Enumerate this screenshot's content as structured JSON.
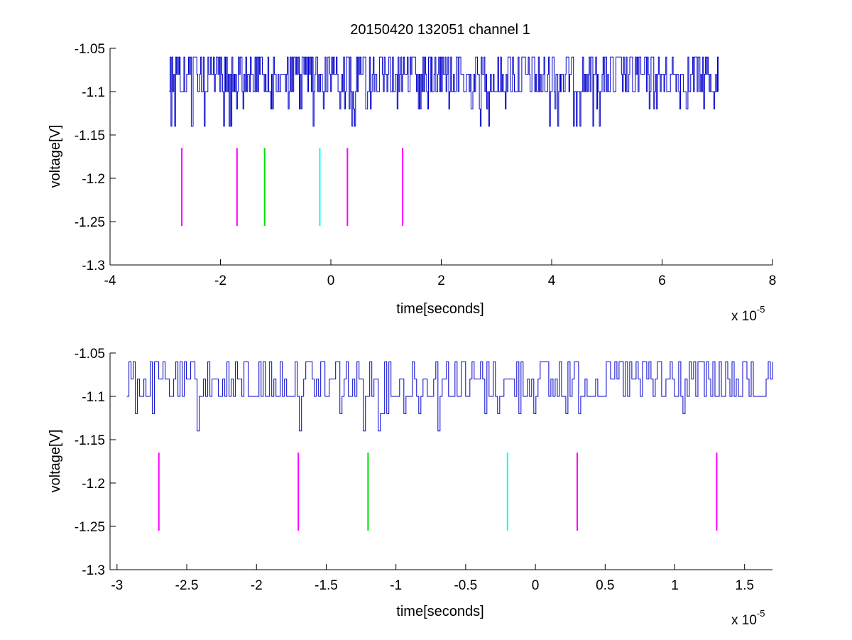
{
  "chart_data": [
    {
      "type": "line",
      "title": "20150420 132051 channel 1",
      "xlabel": "time[seconds]",
      "ylabel": "voltage[V]",
      "x_multiplier_text": "x 10",
      "x_multiplier_exponent": "-5",
      "xlim": [
        -4,
        8
      ],
      "ylim": [
        -1.3,
        -1.05
      ],
      "xticks": [
        -4,
        -2,
        0,
        2,
        4,
        6,
        8
      ],
      "xtick_labels": [
        "-4",
        "-2",
        "0",
        "2",
        "4",
        "6",
        "8"
      ],
      "yticks": [
        -1.05,
        -1.1,
        -1.15,
        -1.2,
        -1.25,
        -1.3
      ],
      "ytick_labels": [
        "-1.05",
        "-1.1",
        "-1.15",
        "-1.2",
        "-1.25",
        "-1.3"
      ],
      "grid": false,
      "signal": {
        "color": "#0000cc",
        "x_start": -2.93,
        "x_end": 7.02,
        "levels": [
          -1.06,
          -1.08,
          -1.1,
          -1.12,
          -1.14
        ]
      },
      "markers": [
        {
          "x": -2.7,
          "y_bottom": -1.255,
          "y_top": -1.165,
          "color": "#ff00ff"
        },
        {
          "x": -1.7,
          "y_bottom": -1.255,
          "y_top": -1.165,
          "color": "#ff00ff"
        },
        {
          "x": -1.2,
          "y_bottom": -1.255,
          "y_top": -1.165,
          "color": "#00e000"
        },
        {
          "x": -0.2,
          "y_bottom": -1.255,
          "y_top": -1.165,
          "color": "#00ffff"
        },
        {
          "x": 0.3,
          "y_bottom": -1.255,
          "y_top": -1.165,
          "color": "#ff00ff"
        },
        {
          "x": 1.3,
          "y_bottom": -1.255,
          "y_top": -1.165,
          "color": "#ff00ff"
        }
      ]
    },
    {
      "type": "line",
      "title": "",
      "xlabel": "time[seconds]",
      "ylabel": "voltage[V]",
      "x_multiplier_text": "x 10",
      "x_multiplier_exponent": "-5",
      "xlim": [
        -3.05,
        1.7
      ],
      "ylim": [
        -1.3,
        -1.05
      ],
      "xticks": [
        -3,
        -2.5,
        -2,
        -1.5,
        -1,
        -0.5,
        0,
        0.5,
        1,
        1.5
      ],
      "xtick_labels": [
        "-3",
        "-2.5",
        "-2",
        "-1.5",
        "-1",
        "-0.5",
        "0",
        "0.5",
        "1",
        "1.5"
      ],
      "yticks": [
        -1.05,
        -1.1,
        -1.15,
        -1.2,
        -1.25,
        -1.3
      ],
      "ytick_labels": [
        "-1.05",
        "-1.1",
        "-1.15",
        "-1.2",
        "-1.25",
        "-1.3"
      ],
      "grid": false,
      "signal": {
        "color": "#0000cc",
        "x_start": -2.93,
        "x_end": 1.7,
        "levels": [
          -1.06,
          -1.08,
          -1.1,
          -1.12,
          -1.14
        ]
      },
      "markers": [
        {
          "x": -2.7,
          "y_bottom": -1.255,
          "y_top": -1.165,
          "color": "#ff00ff"
        },
        {
          "x": -1.7,
          "y_bottom": -1.255,
          "y_top": -1.165,
          "color": "#ff00ff"
        },
        {
          "x": -1.2,
          "y_bottom": -1.255,
          "y_top": -1.165,
          "color": "#00e000"
        },
        {
          "x": -0.2,
          "y_bottom": -1.255,
          "y_top": -1.165,
          "color": "#00ffff"
        },
        {
          "x": 0.3,
          "y_bottom": -1.255,
          "y_top": -1.165,
          "color": "#ff00ff"
        },
        {
          "x": 1.3,
          "y_bottom": -1.255,
          "y_top": -1.165,
          "color": "#ff00ff"
        }
      ]
    }
  ]
}
